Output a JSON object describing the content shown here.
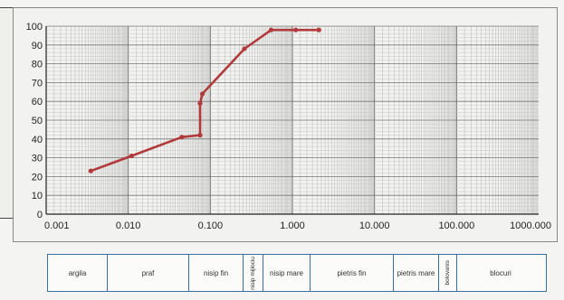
{
  "chart_data": {
    "type": "line",
    "xscale": "log",
    "xlim": [
      0.001,
      1000
    ],
    "ylim": [
      0,
      100
    ],
    "grid": true,
    "series_color": "#b23a3a",
    "x_tick_labels": [
      "0.001",
      "0.010",
      "0.100",
      "1.000",
      "10.000",
      "100.000",
      "1000.000"
    ],
    "y_tick_labels": [
      "0",
      "10",
      "20",
      "30",
      "40",
      "50",
      "60",
      "70",
      "80",
      "90",
      "100"
    ],
    "x": [
      0.0035,
      0.011,
      0.045,
      0.075,
      0.075,
      0.08,
      0.26,
      0.55,
      1.1,
      2.1
    ],
    "y": [
      23,
      31,
      41,
      42,
      59,
      64,
      88,
      98,
      98,
      98
    ]
  },
  "legend": {
    "cells": [
      "argila",
      "praf",
      "nisip fin",
      "nisip mijlociu",
      "nisip mare",
      "pietris fin",
      "pietris mare",
      "bolovanis",
      "blocuri"
    ]
  }
}
